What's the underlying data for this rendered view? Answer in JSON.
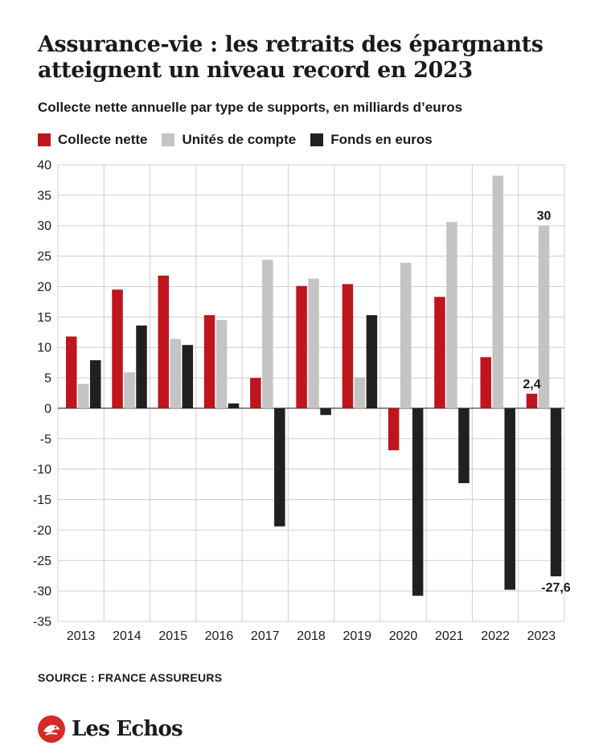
{
  "title": "Assurance-vie : les retraits des épargnants atteignent un niveau record en 2023",
  "subtitle": "Collecte nette annuelle par type de supports, en milliards d’euros",
  "source": "SOURCE : FRANCE ASSUREURS",
  "brand": "Les Echos",
  "colors": {
    "collecte": "#c0151c",
    "unites": "#c4c4c4",
    "fonds": "#231f20",
    "grid": "#cfcfcf",
    "axis": "#222222",
    "brand_red": "#d42b26"
  },
  "chart_data": {
    "type": "bar",
    "categories": [
      "2013",
      "2014",
      "2015",
      "2016",
      "2017",
      "2018",
      "2019",
      "2020",
      "2021",
      "2022",
      "2023"
    ],
    "series": [
      {
        "name": "Collecte nette",
        "color": "#c0151c",
        "values": [
          11.8,
          19.5,
          21.8,
          15.3,
          5.0,
          20.1,
          20.4,
          -6.9,
          18.3,
          8.4,
          2.4
        ]
      },
      {
        "name": "Unités de compte",
        "color": "#c4c4c4",
        "values": [
          4.0,
          5.9,
          11.4,
          14.5,
          24.4,
          21.3,
          5.1,
          23.9,
          30.6,
          38.2,
          30.0
        ]
      },
      {
        "name": "Fonds en euros",
        "color": "#231f20",
        "values": [
          7.9,
          13.6,
          10.4,
          0.8,
          -19.4,
          -1.1,
          15.3,
          -30.8,
          -12.3,
          -29.8,
          -27.6
        ]
      }
    ],
    "ylim": [
      -35,
      40
    ],
    "yticks": [
      40,
      35,
      30,
      25,
      20,
      15,
      10,
      5,
      0,
      -5,
      -10,
      -15,
      -20,
      -25,
      -30,
      -35
    ],
    "grid": true,
    "legend_position": "top-left",
    "annotations": [
      {
        "series": 1,
        "category": "2023",
        "text": "30"
      },
      {
        "series": 0,
        "category": "2023",
        "text": "2,4"
      },
      {
        "series": 2,
        "category": "2023",
        "text": "-27,6"
      }
    ]
  }
}
